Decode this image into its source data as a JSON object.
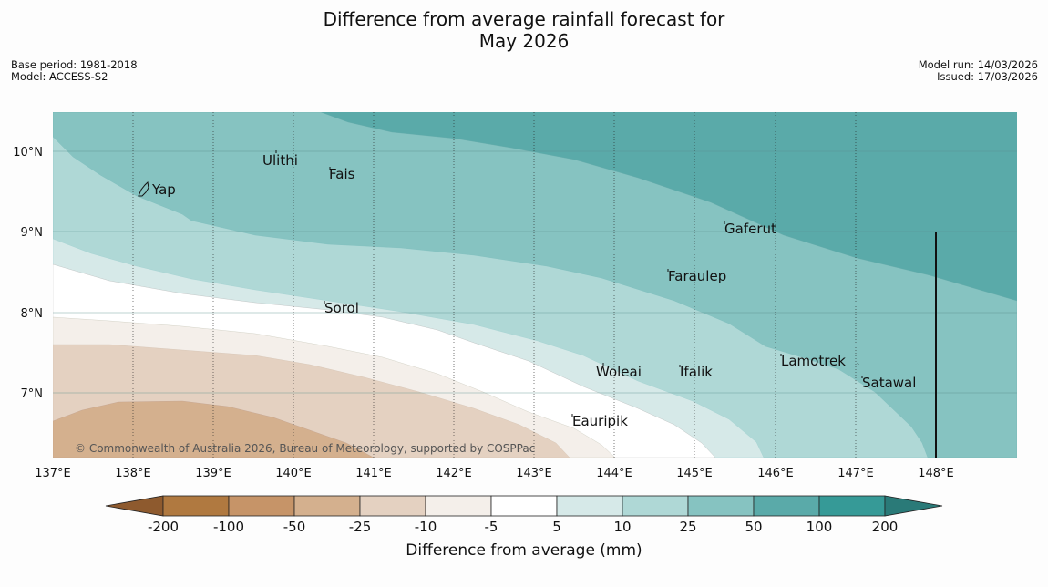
{
  "header": {
    "title_line1": "Difference from average rainfall forecast for",
    "title_line2": "May 2026",
    "base_period": "Base period: 1981-2018",
    "model": "Model: ACCESS-S2",
    "model_run": "Model run: 14/03/2026",
    "issued": "Issued: 17/03/2026"
  },
  "map": {
    "copyright": "© Commonwealth of Australia 2026, Bureau of Meteorology, supported by COSPPac",
    "lon_labels": [
      "137°E",
      "138°E",
      "139°E",
      "140°E",
      "141°E",
      "142°E",
      "143°E",
      "144°E",
      "145°E",
      "146°E",
      "147°E",
      "148°E"
    ],
    "lat_labels": [
      "10°N",
      "9°N",
      "8°N",
      "7°N"
    ],
    "places": [
      {
        "name": "Yap",
        "lon": 138.2,
        "lat": 9.53
      },
      {
        "name": "Ulithi",
        "lon": 139.6,
        "lon_note": "",
        "lat": 9.87
      },
      {
        "name": "Fais",
        "lon": 140.5,
        "lat": 9.72
      },
      {
        "name": "Gaferut",
        "lon": 145.3,
        "lat": 9.05
      },
      {
        "name": "Faraulep",
        "lon": 144.6,
        "lat": 8.45
      },
      {
        "name": "Sorol",
        "lon": 140.4,
        "lat": 8.08
      },
      {
        "name": "Lamotrek",
        "lon": 146.0,
        "lat": 7.4
      },
      {
        "name": "Woleai",
        "lon": 143.9,
        "lat": 7.3
      },
      {
        "name": "Ifalik",
        "lon": 144.7,
        "lat": 7.3
      },
      {
        "name": "Satawal",
        "lon": 147.0,
        "lat": 7.15
      },
      {
        "name": "Eauripik",
        "lon": 143.1,
        "lat": 6.7
      }
    ]
  },
  "colorbar": {
    "title": "Difference from average (mm)",
    "tick_labels": [
      "-200",
      "-100",
      "-50",
      "-25",
      "-10",
      "-5",
      "5",
      "10",
      "25",
      "50",
      "100",
      "200"
    ],
    "colors": [
      "#8e5a2e",
      "#b07940",
      "#c69468",
      "#d4b08e",
      "#e4d1c1",
      "#f4efea",
      "#ffffff",
      "#d6e9e8",
      "#afd8d6",
      "#86c3c1",
      "#5aaaa9",
      "#369a97",
      "#2a7a78"
    ]
  }
}
